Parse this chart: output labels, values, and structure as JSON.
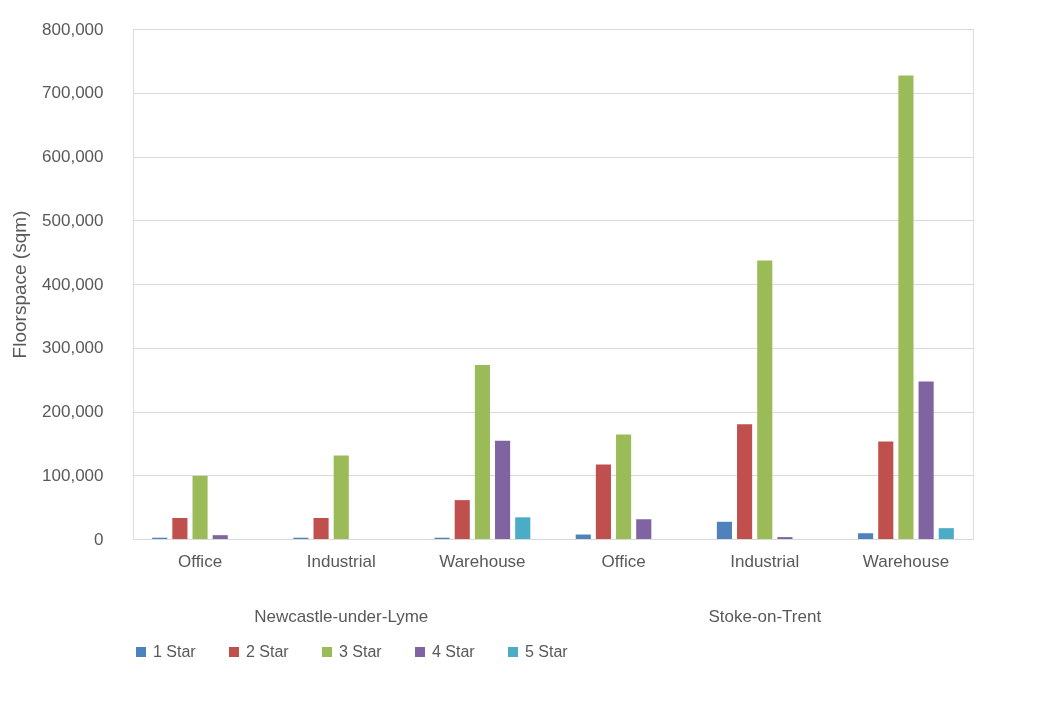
{
  "chart_data": {
    "type": "bar",
    "ylabel": "Floorspace (sqm)",
    "categories": [
      "Office",
      "Industrial",
      "Warehouse",
      "Office",
      "Industrial",
      "Warehouse"
    ],
    "annotations": [
      "Newcastle-under-Lyme",
      "Stoke-on-Trent"
    ],
    "series": [
      {
        "name": "1 Star",
        "color": "#4f81bd",
        "values": [
          2000,
          2000,
          2000,
          7000,
          27000,
          9000
        ]
      },
      {
        "name": "2 Star",
        "color": "#c0504d",
        "values": [
          33000,
          33000,
          61000,
          117000,
          180000,
          153000
        ]
      },
      {
        "name": "3 Star",
        "color": "#9bbb59",
        "values": [
          99000,
          131000,
          273000,
          164000,
          437000,
          727000
        ]
      },
      {
        "name": "4 Star",
        "color": "#8064a2",
        "values": [
          6000,
          null,
          154000,
          31000,
          3000,
          247000
        ]
      },
      {
        "name": "5 Star",
        "color": "#4bacc6",
        "values": [
          null,
          null,
          34000,
          null,
          null,
          17000
        ]
      }
    ],
    "ylim": [
      0,
      800000
    ],
    "yticks": [
      0,
      {
        "value": 100000,
        "label": "100,000"
      },
      {
        "value": 200000,
        "label": "200,000"
      },
      {
        "value": 300000,
        "label": "300,000"
      },
      {
        "value": 400000,
        "label": "400,000"
      },
      {
        "value": 500000,
        "label": "500,000"
      },
      {
        "value": 600000,
        "label": "600,000"
      },
      {
        "value": 700000,
        "label": "700,000"
      },
      {
        "value": 800000,
        "label": "800,000"
      }
    ],
    "grid": "y",
    "legend": "bottom"
  }
}
